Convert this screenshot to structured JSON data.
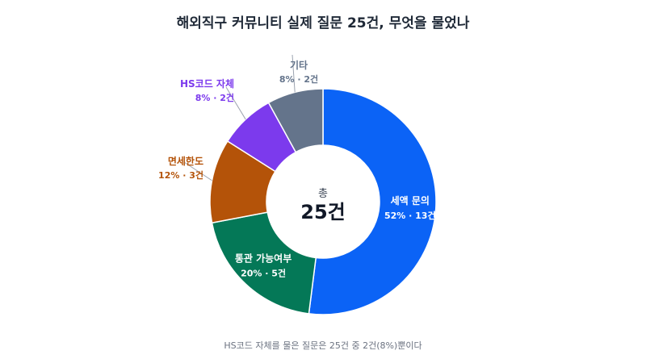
{
  "title": "해외직구 커뮤니티 실제 질문 25건, 무엇을 물었나",
  "footnote": "HS코드 자체를 물은 질문은 25건 중 2건(8%)뿐이다",
  "chart_data": {
    "type": "pie",
    "variant": "donut",
    "center_label": "총",
    "center_value": "25건",
    "slices": [
      {
        "label": "세액 문의",
        "percent": 52,
        "count": 13,
        "detail": "52% · 13건",
        "color": "#0b63f6",
        "label_placement": "inside"
      },
      {
        "label": "통관 가능여부",
        "percent": 20,
        "count": 5,
        "detail": "20% · 5건",
        "color": "#047857",
        "label_placement": "inside"
      },
      {
        "label": "면세한도",
        "percent": 12,
        "count": 3,
        "detail": "12% · 3건",
        "color": "#b45309",
        "label_placement": "outside",
        "label_color": "#b45309"
      },
      {
        "label": "HS코드 자체",
        "percent": 8,
        "count": 2,
        "detail": "8% · 2건",
        "color": "#7c3aed",
        "label_placement": "outside",
        "label_color": "#7c3aed"
      },
      {
        "label": "기타",
        "percent": 8,
        "count": 2,
        "detail": "8% · 2건",
        "color": "#64748b",
        "label_placement": "outside",
        "label_color": "#64748b"
      }
    ]
  }
}
